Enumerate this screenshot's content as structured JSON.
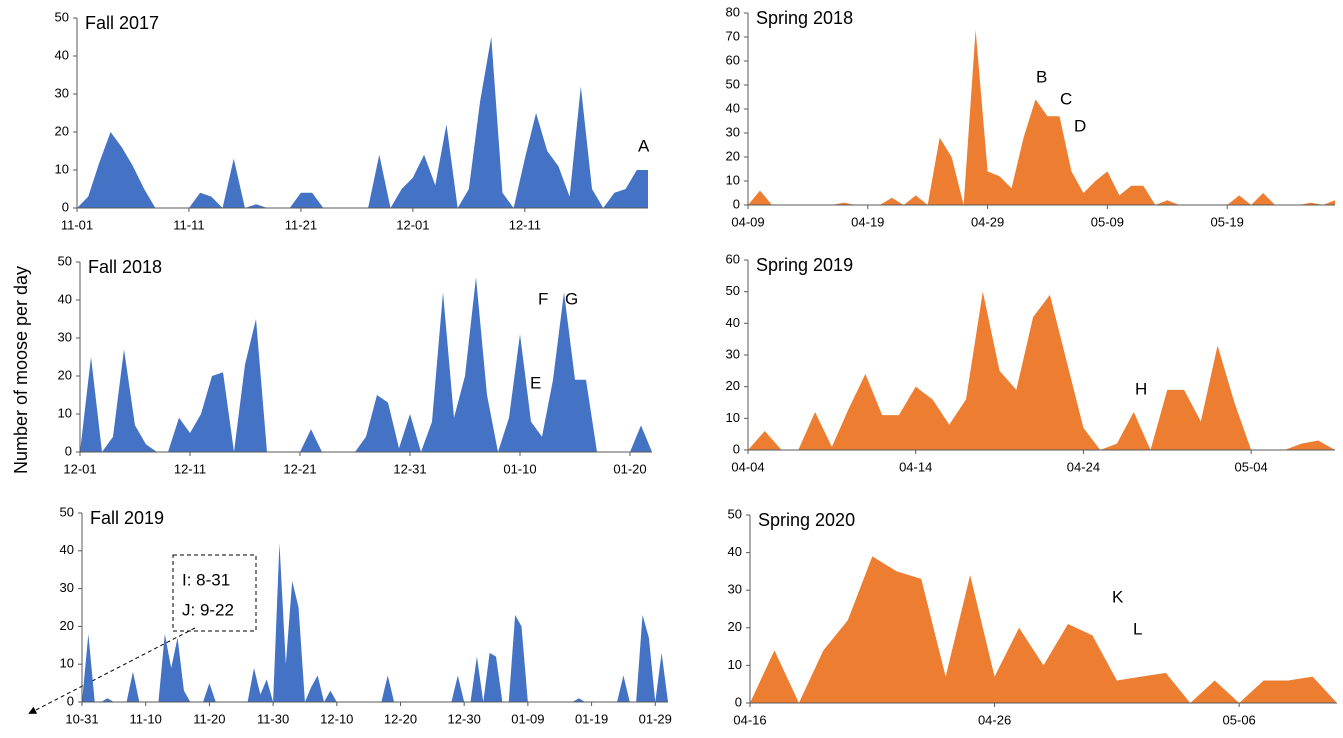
{
  "ylabel": "Number of moose per day",
  "chart_data": [
    {
      "type": "area",
      "title": "Fall 2017",
      "color": "#4472c4",
      "categories": [
        "11-01",
        null,
        null,
        null,
        null,
        null,
        null,
        null,
        null,
        null,
        "11-11",
        null,
        null,
        null,
        null,
        null,
        null,
        null,
        null,
        null,
        "11-21",
        null,
        null,
        null,
        null,
        null,
        null,
        null,
        null,
        null,
        "12-01",
        null,
        null,
        null,
        null,
        null,
        null,
        null,
        null,
        null,
        "12-11",
        null,
        null,
        null,
        null,
        null,
        null,
        null,
        null,
        null,
        null,
        null
      ],
      "values": [
        0,
        3,
        12,
        20,
        16,
        11,
        5,
        0,
        0,
        0,
        0,
        4,
        3,
        0,
        13,
        0,
        1,
        0,
        0,
        0,
        4,
        4,
        0,
        0,
        0,
        0,
        0,
        14,
        0,
        5,
        8,
        14,
        6,
        22,
        0,
        5,
        28,
        45,
        4,
        0,
        13,
        25,
        15,
        11,
        3,
        32,
        5,
        0,
        4,
        5,
        10,
        10
      ],
      "ylim": [
        0,
        50
      ],
      "yticks": [
        0,
        10,
        20,
        30,
        40,
        50
      ],
      "annotations": [
        "A"
      ]
    },
    {
      "type": "area",
      "title": "Spring 2018",
      "color": "#ed7d31",
      "categories": [
        "04-09",
        null,
        null,
        null,
        null,
        null,
        null,
        null,
        null,
        null,
        "04-19",
        null,
        null,
        null,
        null,
        null,
        null,
        null,
        null,
        null,
        "04-29",
        null,
        null,
        null,
        null,
        null,
        null,
        null,
        null,
        null,
        "05-09",
        null,
        null,
        null,
        null,
        null,
        null,
        null,
        null,
        null,
        "05-19",
        null,
        null,
        null,
        null,
        null,
        null,
        null,
        null,
        null
      ],
      "values": [
        0,
        6,
        0,
        0,
        0,
        0,
        0,
        0,
        1,
        0,
        0,
        0,
        3,
        0,
        4,
        0,
        28,
        20,
        0,
        73,
        14,
        12,
        7,
        28,
        44,
        37,
        37,
        14,
        5,
        10,
        14,
        4,
        8,
        8,
        0,
        2,
        0,
        0,
        0,
        0,
        0,
        4,
        0,
        5,
        0,
        0,
        0,
        1,
        0,
        2
      ],
      "ylim": [
        0,
        80
      ],
      "yticks": [
        0,
        10,
        20,
        30,
        40,
        50,
        60,
        70,
        80
      ],
      "annotations": [
        "B",
        "C",
        "D"
      ]
    },
    {
      "type": "area",
      "title": "Fall 2018",
      "color": "#4472c4",
      "categories": [
        "12-01",
        null,
        null,
        null,
        null,
        null,
        null,
        null,
        null,
        null,
        "12-11",
        null,
        null,
        null,
        null,
        null,
        null,
        null,
        null,
        null,
        "12-21",
        null,
        null,
        null,
        null,
        null,
        null,
        null,
        null,
        null,
        "12-31",
        null,
        null,
        null,
        null,
        null,
        null,
        null,
        null,
        null,
        "01-10",
        null,
        null,
        null,
        null,
        null,
        null,
        null,
        null,
        null,
        "01-20",
        null,
        null
      ],
      "values": [
        0,
        25,
        0,
        4,
        27,
        7,
        2,
        0,
        0,
        9,
        5,
        10,
        20,
        21,
        0,
        23,
        35,
        0,
        0,
        0,
        0,
        6,
        0,
        0,
        0,
        0,
        4,
        15,
        13,
        1,
        10,
        0,
        8,
        42,
        9,
        20,
        46,
        15,
        0,
        9,
        31,
        8,
        4,
        19,
        42,
        19,
        19,
        0,
        0,
        0,
        0,
        7,
        0
      ],
      "ylim": [
        0,
        50
      ],
      "yticks": [
        0,
        10,
        20,
        30,
        40,
        50
      ],
      "annotations": [
        "E",
        "F",
        "G"
      ]
    },
    {
      "type": "area",
      "title": "Spring 2019",
      "color": "#ed7d31",
      "categories": [
        "04-04",
        null,
        null,
        null,
        null,
        null,
        null,
        null,
        null,
        null,
        "04-14",
        null,
        null,
        null,
        null,
        null,
        null,
        null,
        null,
        null,
        "04-24",
        null,
        null,
        null,
        null,
        null,
        null,
        null,
        null,
        null,
        "05-04",
        null,
        null,
        null,
        null,
        null
      ],
      "values": [
        0,
        6,
        0,
        0,
        12,
        1,
        13,
        24,
        11,
        11,
        20,
        16,
        8,
        16,
        50,
        25,
        19,
        42,
        49,
        28,
        7,
        0,
        2,
        12,
        0,
        19,
        19,
        9,
        33,
        15,
        0,
        0,
        0,
        2,
        3,
        0
      ],
      "ylim": [
        0,
        60
      ],
      "yticks": [
        0,
        10,
        20,
        30,
        40,
        50,
        60
      ],
      "annotations": [
        "H"
      ]
    },
    {
      "type": "area",
      "title": "Fall 2019",
      "color": "#4472c4",
      "categories": [
        "10-31",
        null,
        null,
        null,
        null,
        null,
        null,
        null,
        null,
        null,
        "11-10",
        null,
        null,
        null,
        null,
        null,
        null,
        null,
        null,
        null,
        "11-20",
        null,
        null,
        null,
        null,
        null,
        null,
        null,
        null,
        null,
        "11-30",
        null,
        null,
        null,
        null,
        null,
        null,
        null,
        null,
        null,
        "12-10",
        null,
        null,
        null,
        null,
        null,
        null,
        null,
        null,
        null,
        "12-20",
        null,
        null,
        null,
        null,
        null,
        null,
        null,
        null,
        null,
        "12-30",
        null,
        null,
        null,
        null,
        null,
        null,
        null,
        null,
        null,
        "01-09",
        null,
        null,
        null,
        null,
        null,
        null,
        null,
        null,
        null,
        "01-19",
        null,
        null,
        null,
        null,
        null,
        null,
        null,
        null,
        null,
        "01-29",
        null,
        null
      ],
      "values": [
        0,
        18,
        0,
        0,
        1,
        0,
        0,
        0,
        8,
        0,
        0,
        0,
        0,
        18,
        9,
        17,
        3,
        0,
        0,
        0,
        5,
        0,
        0,
        0,
        0,
        0,
        0,
        9,
        2,
        6,
        0,
        42,
        10,
        32,
        25,
        0,
        4,
        7,
        0,
        3,
        0,
        0,
        0,
        0,
        0,
        0,
        0,
        0,
        7,
        0,
        0,
        0,
        0,
        0,
        0,
        0,
        0,
        0,
        0,
        7,
        0,
        0,
        12,
        0,
        13,
        12,
        0,
        0,
        23,
        20,
        0,
        0,
        0,
        0,
        0,
        0,
        0,
        0,
        1,
        0,
        0,
        0,
        0,
        0,
        0,
        7,
        0,
        0,
        23,
        17,
        0,
        13,
        0
      ],
      "ylim": [
        0,
        50
      ],
      "yticks": [
        0,
        10,
        20,
        30,
        40,
        50
      ],
      "annotations": [
        "I: 8-31",
        "J: 9-22"
      ]
    },
    {
      "type": "area",
      "title": "Spring 2020",
      "color": "#ed7d31",
      "categories": [
        "04-16",
        null,
        null,
        null,
        null,
        null,
        null,
        null,
        null,
        null,
        "04-26",
        null,
        null,
        null,
        null,
        null,
        null,
        null,
        null,
        null,
        "05-06",
        null,
        null,
        null,
        null
      ],
      "values": [
        0,
        14,
        0,
        14,
        22,
        39,
        35,
        33,
        7,
        34,
        7,
        20,
        10,
        21,
        18,
        6,
        7,
        8,
        0,
        6,
        0,
        6,
        6,
        7,
        0
      ],
      "ylim": [
        0,
        50
      ],
      "yticks": [
        0,
        10,
        20,
        30,
        40,
        50
      ],
      "annotations": [
        "K",
        "L"
      ]
    }
  ]
}
